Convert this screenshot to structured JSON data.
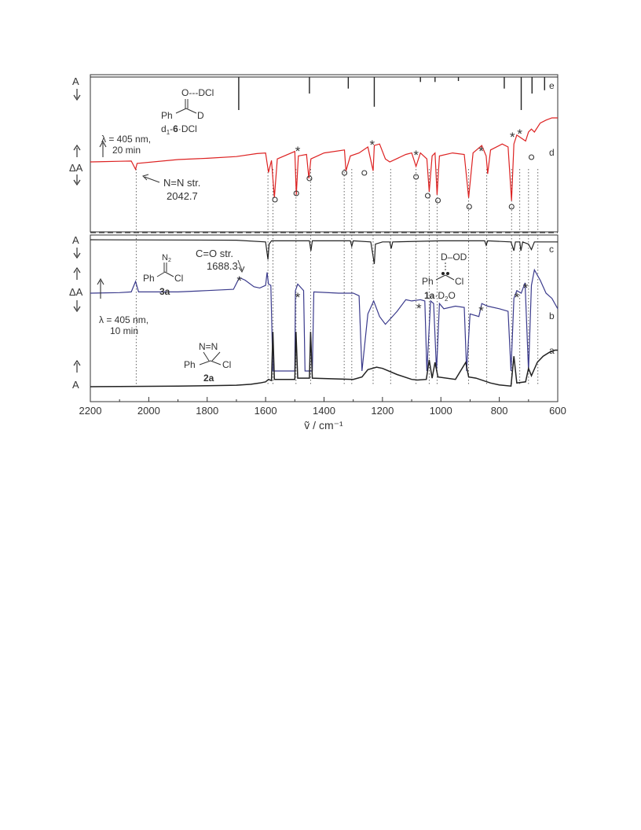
{
  "figure": {
    "x_axis_label": "ṽ / cm⁻¹",
    "x_ticks": [
      "2200",
      "2000",
      "1800",
      "1600",
      "1400",
      "1200",
      "1000",
      "800",
      "600"
    ],
    "panel_top": {
      "y_label_stick": "A",
      "y_label_delta": "ΔA",
      "annotations": {
        "irr_line1": "λ = 405 nm,",
        "irr_line2": "20 min",
        "nn_stretch_line1": "N=N str.",
        "nn_stretch_line2": "2042.7"
      },
      "structure_6": {
        "top_label": "O---DCl",
        "ph": "Ph",
        "d": "D",
        "name_prefix": "d",
        "name_sub": "1",
        "name_dash": "-",
        "name_bold": "6",
        "name_suffix": "·DCl"
      }
    },
    "panel_bottom": {
      "y_label_top": "A",
      "y_label_delta": "ΔA",
      "y_label_bottom": "A",
      "annotations": {
        "irr_line1": "λ = 405 nm,",
        "irr_line2": "10 min",
        "co_stretch_line1": "C=O str.",
        "co_stretch_line2": "1688.3"
      },
      "structure_3a": {
        "n2": "N",
        "n2_sub": "2",
        "ph": "Ph",
        "cl": "Cl",
        "name": "3a"
      },
      "structure_2a": {
        "nn": "N=N",
        "ph": "Ph",
        "cl": "Cl",
        "name": "2a"
      },
      "structure_1a": {
        "top": "D–OD",
        "ph": "Ph",
        "cl": "Cl",
        "name_bold": "1a",
        "name_suffix": "·D",
        "name_sub": "2",
        "name_end": "O"
      }
    }
  },
  "chart_data": {
    "type": "line",
    "xlabel": "ṽ / cm⁻¹",
    "xlim": [
      2200,
      600
    ],
    "x_reversed": true,
    "series": [
      {
        "name": "e",
        "color": "#222222",
        "style": "stick",
        "sticks": [
          [
            1692,
            1.0
          ],
          [
            1450,
            0.5
          ],
          [
            1317,
            0.35
          ],
          [
            1228,
            0.9
          ],
          [
            1070,
            0.15
          ],
          [
            1020,
            0.15
          ],
          [
            940,
            0.12
          ],
          [
            783,
            0.35
          ],
          [
            725,
            1.0
          ],
          [
            688,
            0.5
          ],
          [
            645,
            0.4
          ]
        ]
      },
      {
        "name": "d",
        "color": "#dd2222",
        "points": [
          [
            2200,
            0
          ],
          [
            2100,
            0.02
          ],
          [
            2060,
            0.03
          ],
          [
            2045,
            -0.25
          ],
          [
            2040,
            -0.05
          ],
          [
            1900,
            0.08
          ],
          [
            1800,
            0.12
          ],
          [
            1700,
            0.18
          ],
          [
            1630,
            0.28
          ],
          [
            1600,
            0.3
          ],
          [
            1590,
            -0.35
          ],
          [
            1580,
            0.05
          ],
          [
            1570,
            -1.2
          ],
          [
            1560,
            0.1
          ],
          [
            1500,
            0.35
          ],
          [
            1495,
            -1.1
          ],
          [
            1488,
            0.2
          ],
          [
            1460,
            0.25
          ],
          [
            1452,
            -0.55
          ],
          [
            1445,
            0.1
          ],
          [
            1400,
            0.3
          ],
          [
            1330,
            0.4
          ],
          [
            1325,
            -0.3
          ],
          [
            1310,
            0.2
          ],
          [
            1280,
            0.3
          ],
          [
            1250,
            0.5
          ],
          [
            1232,
            -0.3
          ],
          [
            1228,
            0.55
          ],
          [
            1210,
            0.6
          ],
          [
            1190,
            0.1
          ],
          [
            1175,
            0.0
          ],
          [
            1120,
            0.25
          ],
          [
            1100,
            0.3
          ],
          [
            1085,
            -0.15
          ],
          [
            1070,
            0.3
          ],
          [
            1048,
            0.1
          ],
          [
            1040,
            -1.0
          ],
          [
            1030,
            0.2
          ],
          [
            1020,
            0.3
          ],
          [
            1013,
            -1.1
          ],
          [
            1005,
            0.2
          ],
          [
            960,
            0.3
          ],
          [
            920,
            0.25
          ],
          [
            905,
            -1.2
          ],
          [
            890,
            0.3
          ],
          [
            860,
            0.55
          ],
          [
            845,
            0.2
          ],
          [
            840,
            -0.4
          ],
          [
            830,
            0.4
          ],
          [
            790,
            0.6
          ],
          [
            770,
            0.5
          ],
          [
            758,
            -1.3
          ],
          [
            750,
            0.6
          ],
          [
            740,
            0.9
          ],
          [
            725,
            0.8
          ],
          [
            710,
            0.7
          ],
          [
            700,
            1.0
          ],
          [
            690,
            1.1
          ],
          [
            680,
            1.0
          ],
          [
            660,
            1.3
          ],
          [
            640,
            1.4
          ],
          [
            620,
            1.5
          ],
          [
            600,
            1.6
          ]
        ]
      },
      {
        "name": "c",
        "color": "#222222",
        "points": [
          [
            2200,
            0
          ],
          [
            1700,
            -0.02
          ],
          [
            1600,
            -0.1
          ],
          [
            1592,
            -0.9
          ],
          [
            1588,
            -0.2
          ],
          [
            1580,
            -0.05
          ],
          [
            1450,
            -0.05
          ],
          [
            1445,
            -0.5
          ],
          [
            1440,
            -0.05
          ],
          [
            1310,
            -0.05
          ],
          [
            1305,
            -0.3
          ],
          [
            1300,
            -0.05
          ],
          [
            1240,
            -0.1
          ],
          [
            1228,
            -1.1
          ],
          [
            1224,
            -0.2
          ],
          [
            1200,
            -0.1
          ],
          [
            1175,
            -0.1
          ],
          [
            1170,
            -0.4
          ],
          [
            1165,
            -0.1
          ],
          [
            1000,
            -0.05
          ],
          [
            850,
            -0.05
          ],
          [
            845,
            -0.25
          ],
          [
            840,
            -0.05
          ],
          [
            760,
            -0.1
          ],
          [
            750,
            -0.5
          ],
          [
            745,
            -0.1
          ],
          [
            730,
            -0.1
          ],
          [
            726,
            -0.5
          ],
          [
            720,
            -0.1
          ],
          [
            700,
            -0.2
          ],
          [
            690,
            -0.45
          ],
          [
            680,
            -0.1
          ],
          [
            600,
            -0.1
          ]
        ]
      },
      {
        "name": "b",
        "color": "#3a3a8c",
        "points": [
          [
            2200,
            0
          ],
          [
            2100,
            0.02
          ],
          [
            2060,
            0.05
          ],
          [
            2045,
            0.45
          ],
          [
            2035,
            0.05
          ],
          [
            1900,
            0.05
          ],
          [
            1800,
            0.1
          ],
          [
            1710,
            0.15
          ],
          [
            1690,
            0.6
          ],
          [
            1670,
            0.5
          ],
          [
            1640,
            0.25
          ],
          [
            1620,
            0.2
          ],
          [
            1600,
            0.3
          ],
          [
            1595,
            0.8
          ],
          [
            1590,
            0.35
          ],
          [
            1582,
            0.3
          ],
          [
            1575,
            -3.0
          ],
          [
            1560,
            -3.0
          ],
          [
            1500,
            -3.0
          ],
          [
            1498,
            0.1
          ],
          [
            1490,
            0.35
          ],
          [
            1470,
            0.1
          ],
          [
            1465,
            -3.0
          ],
          [
            1440,
            -3.0
          ],
          [
            1435,
            0.05
          ],
          [
            1350,
            0.0
          ],
          [
            1300,
            0.0
          ],
          [
            1280,
            -0.1
          ],
          [
            1270,
            -3.0
          ],
          [
            1250,
            -0.8
          ],
          [
            1230,
            -0.3
          ],
          [
            1210,
            -0.9
          ],
          [
            1190,
            -1.2
          ],
          [
            1150,
            -0.7
          ],
          [
            1120,
            -0.25
          ],
          [
            1100,
            -0.3
          ],
          [
            1070,
            -0.25
          ],
          [
            1055,
            -0.3
          ],
          [
            1048,
            -3.0
          ],
          [
            1035,
            -0.3
          ],
          [
            1025,
            -0.4
          ],
          [
            1015,
            -3.0
          ],
          [
            1005,
            -0.4
          ],
          [
            990,
            -0.6
          ],
          [
            950,
            -0.5
          ],
          [
            920,
            -0.55
          ],
          [
            912,
            -3.0
          ],
          [
            900,
            -0.8
          ],
          [
            870,
            -0.9
          ],
          [
            860,
            -0.4
          ],
          [
            840,
            -0.5
          ],
          [
            800,
            -0.6
          ],
          [
            770,
            -0.7
          ],
          [
            760,
            -3.0
          ],
          [
            750,
            -0.2
          ],
          [
            740,
            0.1
          ],
          [
            725,
            0.0
          ],
          [
            712,
            0.4
          ],
          [
            700,
            -3.0
          ],
          [
            690,
            0.3
          ],
          [
            680,
            0.9
          ],
          [
            660,
            0.5
          ],
          [
            640,
            0.0
          ],
          [
            620,
            -0.2
          ],
          [
            605,
            -0.5
          ],
          [
            600,
            -0.6
          ]
        ]
      },
      {
        "name": "a",
        "color": "#222222",
        "points": [
          [
            2200,
            0
          ],
          [
            2100,
            0.02
          ],
          [
            2000,
            0.03
          ],
          [
            1900,
            0.05
          ],
          [
            1800,
            0.08
          ],
          [
            1700,
            0.12
          ],
          [
            1650,
            0.2
          ],
          [
            1620,
            0.3
          ],
          [
            1600,
            0.4
          ],
          [
            1590,
            0.6
          ],
          [
            1580,
            0.5
          ],
          [
            1575,
            4.5
          ],
          [
            1570,
            0.6
          ],
          [
            1500,
            0.6
          ],
          [
            1496,
            4.5
          ],
          [
            1490,
            0.7
          ],
          [
            1450,
            0.7
          ],
          [
            1446,
            4.5
          ],
          [
            1440,
            0.7
          ],
          [
            1300,
            0.6
          ],
          [
            1270,
            0.8
          ],
          [
            1250,
            1.4
          ],
          [
            1220,
            1.6
          ],
          [
            1200,
            1.5
          ],
          [
            1150,
            1.0
          ],
          [
            1100,
            0.6
          ],
          [
            1080,
            0.55
          ],
          [
            1050,
            0.6
          ],
          [
            1040,
            2.2
          ],
          [
            1030,
            0.7
          ],
          [
            1020,
            2.0
          ],
          [
            1010,
            0.8
          ],
          [
            950,
            0.6
          ],
          [
            915,
            2.0
          ],
          [
            905,
            0.8
          ],
          [
            880,
            0.7
          ],
          [
            830,
            0.3
          ],
          [
            800,
            0.15
          ],
          [
            760,
            0.05
          ],
          [
            750,
            2.5
          ],
          [
            740,
            0.3
          ],
          [
            710,
            0.4
          ],
          [
            700,
            1.5
          ],
          [
            690,
            0.9
          ],
          [
            670,
            2.0
          ],
          [
            650,
            2.5
          ],
          [
            630,
            2.8
          ],
          [
            610,
            3.0
          ],
          [
            600,
            3.0
          ]
        ]
      }
    ]
  }
}
